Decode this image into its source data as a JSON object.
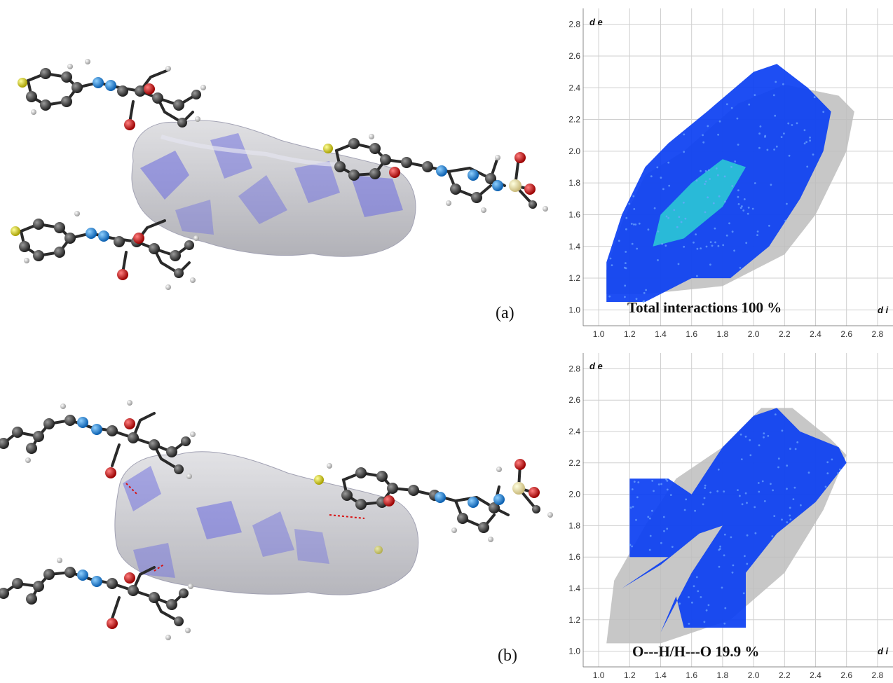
{
  "panels": [
    {
      "label": "(a)",
      "colors": {
        "surface": "#c8c8cc",
        "surface_highlight": "#6a6ae0",
        "carbon": "#3a3a3a",
        "hydrogen": "#e8e8e8",
        "nitrogen": "#1e7fd8",
        "oxygen": "#d81010",
        "sulfur": "#e6e000"
      }
    },
    {
      "label": "(b)",
      "colors": {
        "surface": "#c8c8cc",
        "surface_highlight": "#6a6ae0",
        "carbon": "#3a3a3a",
        "hydrogen": "#e8e8e8",
        "nitrogen": "#1e7fd8",
        "oxygen": "#d81010",
        "sulfur": "#e6e000"
      }
    }
  ],
  "chart_data": [
    {
      "type": "scatter",
      "title": "Total interactions 100 %",
      "xlabel": "d i",
      "ylabel": "d e",
      "x_ticks": [
        "1.0",
        "1.2",
        "1.4",
        "1.6",
        "1.8",
        "2.0",
        "2.2",
        "2.4",
        "2.6",
        "2.8"
      ],
      "y_ticks": [
        "1.0",
        "1.2",
        "1.4",
        "1.6",
        "1.8",
        "2.0",
        "2.2",
        "2.4",
        "2.6",
        "2.8"
      ],
      "xlim": [
        0.9,
        2.9
      ],
      "ylim": [
        0.9,
        2.9
      ],
      "grid": true,
      "colors": {
        "points": "#0b3ff2",
        "dense": "#2fe0d0",
        "background_points": "#bdbdbd"
      },
      "fingerprint_regions": [
        {
          "name": "background",
          "polygon": [
            [
              1.05,
              1.1
            ],
            [
              1.3,
              1.1
            ],
            [
              1.8,
              1.15
            ],
            [
              2.2,
              1.35
            ],
            [
              2.4,
              1.6
            ],
            [
              2.6,
              2.0
            ],
            [
              2.65,
              2.25
            ],
            [
              2.55,
              2.35
            ],
            [
              2.2,
              2.42
            ],
            [
              1.9,
              2.3
            ],
            [
              1.55,
              2.0
            ],
            [
              1.3,
              1.85
            ],
            [
              1.15,
              1.55
            ],
            [
              1.05,
              1.25
            ]
          ]
        },
        {
          "name": "main",
          "polygon": [
            [
              1.05,
              1.05
            ],
            [
              1.3,
              1.05
            ],
            [
              1.6,
              1.2
            ],
            [
              1.85,
              1.2
            ],
            [
              2.1,
              1.4
            ],
            [
              2.3,
              1.7
            ],
            [
              2.45,
              2.0
            ],
            [
              2.5,
              2.25
            ],
            [
              2.35,
              2.4
            ],
            [
              2.15,
              2.55
            ],
            [
              2.0,
              2.5
            ],
            [
              1.7,
              2.25
            ],
            [
              1.45,
              2.05
            ],
            [
              1.3,
              1.9
            ],
            [
              1.15,
              1.6
            ],
            [
              1.05,
              1.3
            ]
          ]
        },
        {
          "name": "dense",
          "polygon": [
            [
              1.35,
              1.4
            ],
            [
              1.55,
              1.45
            ],
            [
              1.8,
              1.65
            ],
            [
              1.95,
              1.9
            ],
            [
              1.8,
              1.95
            ],
            [
              1.6,
              1.8
            ],
            [
              1.4,
              1.6
            ]
          ]
        }
      ]
    },
    {
      "type": "scatter",
      "title": "O---H/H---O 19.9 %",
      "xlabel": "d i",
      "ylabel": "d e",
      "x_ticks": [
        "1.0",
        "1.2",
        "1.4",
        "1.6",
        "1.8",
        "2.0",
        "2.2",
        "2.4",
        "2.6",
        "2.8"
      ],
      "y_ticks": [
        "1.0",
        "1.2",
        "1.4",
        "1.6",
        "1.8",
        "2.0",
        "2.2",
        "2.4",
        "2.6",
        "2.8"
      ],
      "xlim": [
        0.9,
        2.9
      ],
      "ylim": [
        0.9,
        2.9
      ],
      "grid": true,
      "colors": {
        "points": "#0b3ff2",
        "dense": "#2a7fe8",
        "background_points": "#bdbdbd"
      },
      "fingerprint_regions": [
        {
          "name": "background",
          "polygon": [
            [
              1.05,
              1.05
            ],
            [
              1.4,
              1.05
            ],
            [
              1.85,
              1.2
            ],
            [
              2.2,
              1.5
            ],
            [
              2.45,
              1.9
            ],
            [
              2.6,
              2.25
            ],
            [
              2.5,
              2.35
            ],
            [
              2.25,
              2.55
            ],
            [
              2.05,
              2.55
            ],
            [
              1.8,
              2.3
            ],
            [
              1.5,
              2.1
            ],
            [
              1.3,
              1.8
            ],
            [
              1.1,
              1.45
            ]
          ]
        },
        {
          "name": "main",
          "polygon": [
            [
              1.2,
              1.6
            ],
            [
              1.2,
              2.1
            ],
            [
              1.45,
              2.1
            ],
            [
              1.6,
              2.0
            ],
            [
              1.8,
              2.3
            ],
            [
              2.0,
              2.5
            ],
            [
              2.15,
              2.55
            ],
            [
              2.3,
              2.4
            ],
            [
              2.55,
              2.3
            ],
            [
              2.6,
              2.2
            ],
            [
              2.4,
              1.95
            ],
            [
              2.15,
              1.75
            ],
            [
              1.95,
              1.5
            ],
            [
              1.95,
              1.15
            ],
            [
              1.55,
              1.15
            ],
            [
              1.5,
              1.35
            ],
            [
              1.4,
              1.12
            ],
            [
              1.6,
              1.5
            ],
            [
              1.8,
              1.8
            ],
            [
              1.65,
              1.75
            ],
            [
              1.4,
              1.55
            ],
            [
              1.15,
              1.4
            ],
            [
              1.45,
              1.6
            ]
          ]
        }
      ]
    }
  ]
}
